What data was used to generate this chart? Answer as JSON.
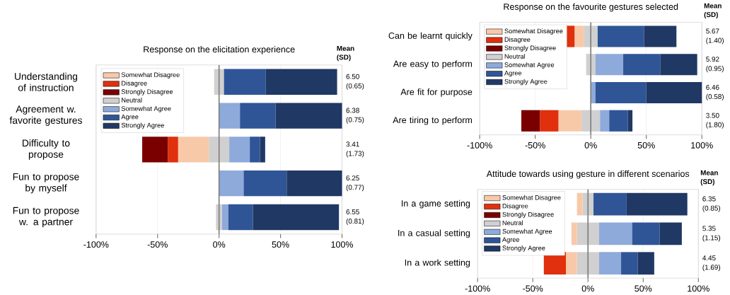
{
  "chart_data": [
    {
      "type": "bar",
      "orientation": "horizontal",
      "stacked": true,
      "title": "Response on the elicitation experience",
      "categories": [
        "Understanding of instruction",
        "Agreement w. favorite gestures",
        "Difficulty to propose",
        "Fun to propose by myself",
        "Fun to propose w. a partner"
      ],
      "series": [
        {
          "color": "#d0d0d0",
          "values": [
            -4,
            0,
            -8.3,
            0,
            -2.5
          ]
        },
        {
          "name": "Somewhat Disagree",
          "color": "#f8c9a9",
          "values": [
            0,
            0,
            -25,
            0,
            0
          ]
        },
        {
          "name": "Disagree",
          "color": "#e0300e",
          "values": [
            0,
            0,
            -8.3,
            0,
            0
          ]
        },
        {
          "name": "Strongly Disagree",
          "color": "#7a0000",
          "values": [
            0,
            0,
            -20.9,
            0,
            0
          ]
        },
        {
          "name": "Neutral",
          "color": "#d0d0d0",
          "values": [
            4,
            0,
            8.3,
            0,
            2.5
          ]
        },
        {
          "name": "Somewhat Agree",
          "color": "#8eaadb",
          "values": [
            0,
            17,
            16.7,
            20,
            5
          ]
        },
        {
          "name": "Agree",
          "color": "#2f5597",
          "values": [
            34,
            29,
            8.3,
            35,
            20
          ]
        },
        {
          "name": "Strongly Agree",
          "color": "#203864",
          "values": [
            58,
            54,
            4.2,
            45,
            70
          ]
        }
      ],
      "xlim": [
        -100,
        100
      ],
      "xticks": [
        {
          "value": -100,
          "label": "-100%"
        },
        {
          "value": -50,
          "label": "-50%"
        },
        {
          "value": 0,
          "label": "0%"
        },
        {
          "value": 50,
          "label": "50%"
        },
        {
          "value": 100,
          "label": "100%"
        }
      ],
      "grid": "x",
      "legend": "top left",
      "ref_lines": [
        {
          "axis": "x",
          "value": 0,
          "color": "#808080"
        }
      ],
      "annotations": [
        "Mean (SD)",
        "6.50 (0.65)",
        "6.38 (0.75)",
        "3.41 (1.73)",
        "6.25 (0.77)",
        "6.55 (0.81)"
      ]
    },
    {
      "type": "bar",
      "orientation": "horizontal",
      "stacked": true,
      "title": "Response on the favourite gestures selected",
      "categories": [
        "Can be learnt quickly",
        "Are easy to perform",
        "Are fit for purpose",
        "Are tiring to perform"
      ],
      "series": [
        {
          "color": "#d0d0d0",
          "values": [
            -6.3,
            -4.2,
            0,
            -8.3
          ]
        },
        {
          "name": "Somewhat Disagree",
          "color": "#f8c9a9",
          "values": [
            -8.3,
            0,
            0,
            -20.8
          ]
        },
        {
          "name": "Disagree",
          "color": "#e0300e",
          "values": [
            -8.3,
            0,
            0,
            -16.7
          ]
        },
        {
          "name": "Strongly Disagree",
          "color": "#7a0000",
          "values": [
            0,
            0,
            0,
            -16.7
          ]
        },
        {
          "name": "Neutral",
          "color": "#d0d0d0",
          "values": [
            6.2,
            4.2,
            0,
            8.3
          ]
        },
        {
          "name": "Somewhat Agree",
          "color": "#8eaadb",
          "values": [
            0,
            25,
            4.2,
            8.3
          ]
        },
        {
          "name": "Agree",
          "color": "#2f5597",
          "values": [
            41.7,
            33.3,
            45.8,
            16.7
          ]
        },
        {
          "name": "Strongly Agree",
          "color": "#203864",
          "values": [
            29.2,
            33.3,
            50,
            4.2
          ]
        }
      ],
      "xlim": [
        -100,
        100
      ],
      "xticks": [
        {
          "value": -100,
          "label": "-100%"
        },
        {
          "value": -50,
          "label": "-50%"
        },
        {
          "value": 0,
          "label": "0%"
        },
        {
          "value": 50,
          "label": "50%"
        },
        {
          "value": 100,
          "label": "100%"
        }
      ],
      "grid": "x",
      "legend": "top left",
      "ref_lines": [
        {
          "axis": "x",
          "value": 0,
          "color": "#808080"
        }
      ],
      "annotations": [
        "Mean (SD)",
        "5.67 (1.40)",
        "5.92 (0.95)",
        "6.46 (0.58)",
        "3.50 (1.80)"
      ]
    },
    {
      "type": "bar",
      "orientation": "horizontal",
      "stacked": true,
      "title": "Attitude towards using gesture in different scenarios",
      "categories": [
        "In a game setting",
        "In a casual setting",
        "In a work setting"
      ],
      "series": [
        {
          "color": "#d0d0d0",
          "values": [
            -5,
            -10,
            -10
          ]
        },
        {
          "name": "Somewhat Disagree",
          "color": "#f8c9a9",
          "values": [
            -5,
            -5,
            -10
          ]
        },
        {
          "name": "Disagree",
          "color": "#e0300e",
          "values": [
            0,
            0,
            -20
          ]
        },
        {
          "name": "Strongly Disagree",
          "color": "#7a0000",
          "values": [
            0,
            0,
            0
          ]
        },
        {
          "name": "Neutral",
          "color": "#d0d0d0",
          "values": [
            5,
            10,
            10
          ]
        },
        {
          "name": "Somewhat Agree",
          "color": "#8eaadb",
          "values": [
            0,
            30,
            20
          ]
        },
        {
          "name": "Agree",
          "color": "#2f5597",
          "values": [
            30,
            25,
            15
          ]
        },
        {
          "name": "Strongly Agree",
          "color": "#203864",
          "values": [
            55,
            20,
            15
          ]
        }
      ],
      "xlim": [
        -100,
        100
      ],
      "xticks": [
        {
          "value": -100,
          "label": "-100%"
        },
        {
          "value": -50,
          "label": "-50%"
        },
        {
          "value": 0,
          "label": "0%"
        },
        {
          "value": 50,
          "label": "50%"
        },
        {
          "value": 100,
          "label": "100%"
        }
      ],
      "grid": "x",
      "legend": "top left",
      "ref_lines": [
        {
          "axis": "x",
          "value": 0,
          "color": "#808080"
        }
      ],
      "annotations": [
        "Mean (SD)",
        "6.35 (0.85)",
        "5.35 (1.15)",
        "4.45 (1.69)"
      ]
    }
  ]
}
